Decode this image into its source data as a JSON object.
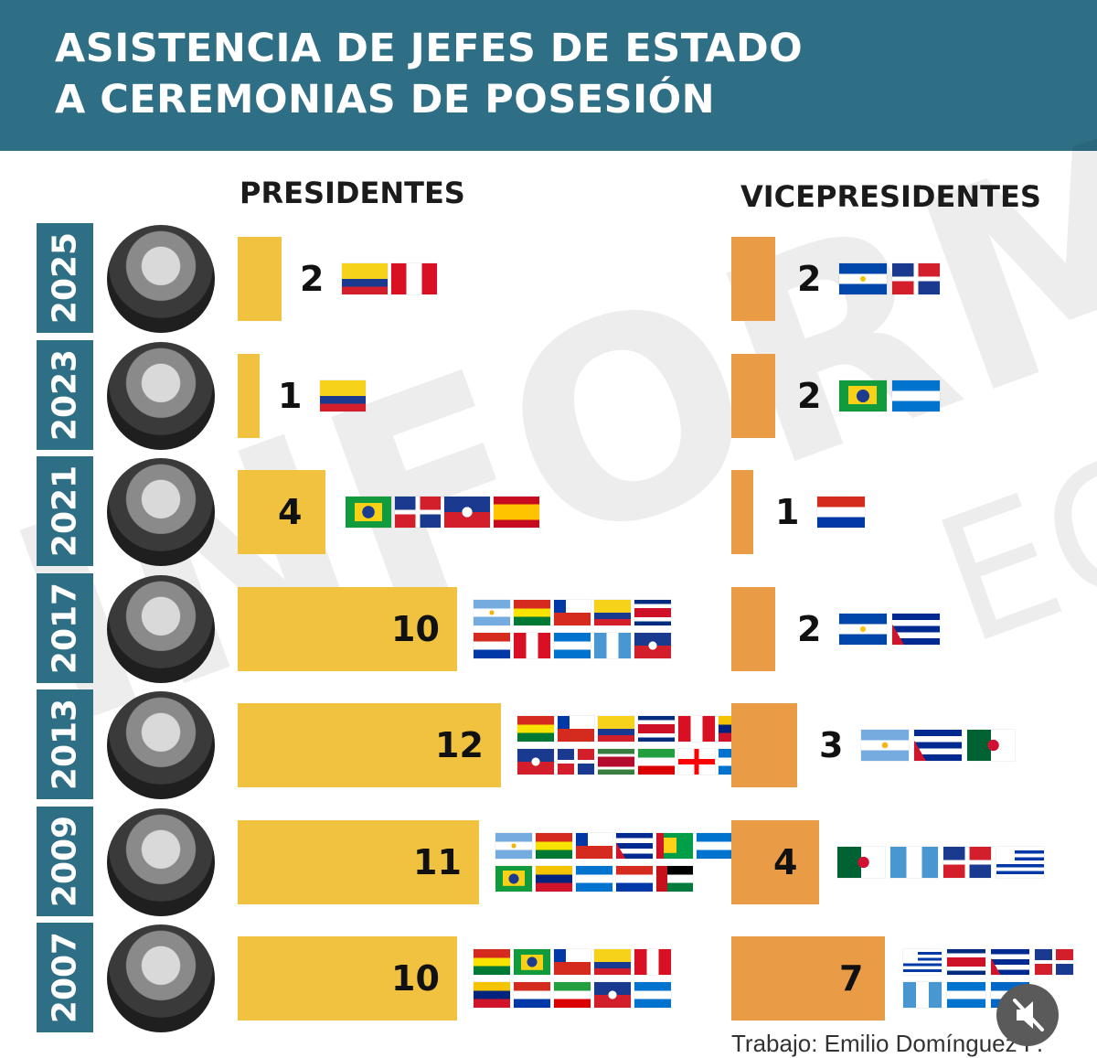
{
  "header": {
    "title_line1": "ASISTENCIA DE JEFES DE ESTADO",
    "title_line2": "A CEREMONIAS DE POSESIÓN"
  },
  "watermark": {
    "text": "INFORMA",
    "text2": "EC"
  },
  "credit": "Trabajo: Emilio Domínguez P.",
  "colors": {
    "header": "#2f6f86",
    "presidentes_bar": "#f0c23f",
    "vicepresidentes_bar": "#ea9b45"
  },
  "chart_data": {
    "type": "bar",
    "orientation": "horizontal",
    "categories": [
      "2025",
      "2023",
      "2021",
      "2017",
      "2013",
      "2009",
      "2007"
    ],
    "series": [
      {
        "name": "PRESIDENTES",
        "values": [
          2,
          1,
          4,
          10,
          12,
          11,
          10
        ],
        "flags": [
          [
            "colombia",
            "peru"
          ],
          [
            "colombia"
          ],
          [
            "brazil",
            "dominican-republic",
            "haiti",
            "spain"
          ],
          [
            "argentina",
            "bolivia",
            "chile",
            "colombia",
            "costa-rica",
            "paraguay",
            "peru",
            "honduras",
            "guatemala",
            "haiti"
          ],
          [
            "bolivia",
            "chile",
            "colombia",
            "costa-rica",
            "peru",
            "venezuela",
            "haiti",
            "dominican-republic",
            "suriname",
            "iran",
            "georgia",
            "honduras"
          ],
          [
            "argentina",
            "bolivia",
            "chile",
            "cuba",
            "guyana",
            "honduras",
            "brazil",
            "venezuela",
            "honduras",
            "paraguay",
            "western-sahara"
          ],
          [
            "bolivia",
            "brazil",
            "chile",
            "colombia",
            "peru",
            "venezuela",
            "paraguay",
            "iran",
            "haiti",
            "honduras"
          ]
        ]
      },
      {
        "name": "VICEPRESIDENTES",
        "values": [
          2,
          2,
          1,
          2,
          3,
          4,
          7
        ],
        "flags": [
          [
            "el-salvador",
            "dominican-republic"
          ],
          [
            "brazil",
            "honduras"
          ],
          [
            "paraguay"
          ],
          [
            "el-salvador",
            "cuba"
          ],
          [
            "argentina",
            "cuba",
            "algeria"
          ],
          [
            "algeria",
            "guatemala",
            "dominican-republic",
            "uruguay"
          ],
          [
            "uruguay",
            "costa-rica",
            "cuba",
            "dominican-republic",
            "guatemala",
            "honduras",
            "nicaragua"
          ]
        ]
      }
    ],
    "grid": false,
    "legend": "column headers"
  }
}
